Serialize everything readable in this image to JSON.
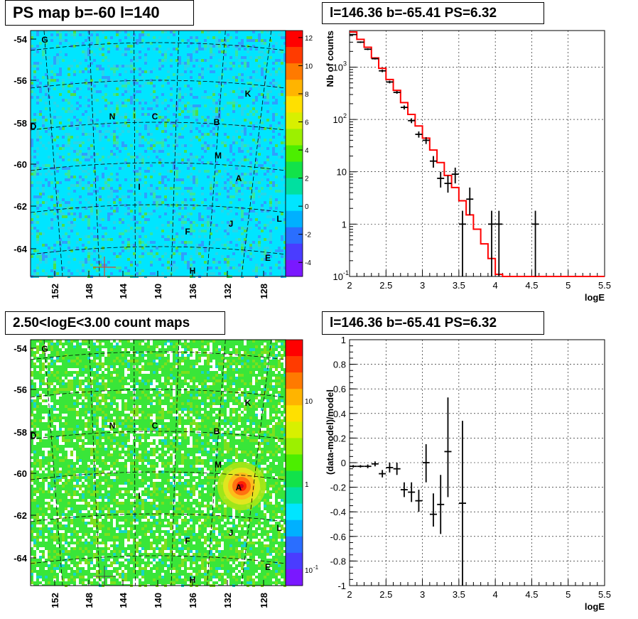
{
  "panels": {
    "map_top_title": "PS map b=-60 l=140",
    "spec_top_title": "l=146.36 b=-65.41 PS=6.32",
    "map_bottom_title": "2.50<logE<3.00 count maps",
    "spec_bottom_title": "l=146.36 b=-65.41 PS=6.32"
  },
  "colors": {
    "ps_cyan": "#00e5ff",
    "count_green": "#39e639",
    "model_line": "#ff0000",
    "data_marks": "#000000",
    "source_peak": "#ff0000"
  },
  "map_axes": {
    "lat_ticks": [
      "-54",
      "-56",
      "-58",
      "-60",
      "-62",
      "-64"
    ],
    "lon_ticks": [
      "152",
      "148",
      "144",
      "140",
      "136",
      "132",
      "128"
    ]
  },
  "source_labels": [
    "G",
    "K",
    "N",
    "C",
    "B",
    "D",
    "M",
    "A",
    "I",
    "L",
    "F",
    "J",
    "E",
    "H"
  ],
  "colorbars": {
    "ps_ticks": [
      "12",
      "10",
      "8",
      "6",
      "4",
      "2",
      "0",
      "-2",
      "-4"
    ],
    "count_ticks": [
      "10",
      "1",
      "10",
      "-1"
    ]
  },
  "chart_data": [
    {
      "type": "heatmap",
      "title": "PS map b=-60 l=140",
      "ylim": [
        -65.3,
        -53.8
      ],
      "xlim": [
        154.5,
        125.5
      ],
      "colorbar_range": [
        -5,
        12
      ]
    },
    {
      "type": "line",
      "title": "l=146.36 b=-65.41 PS=6.32",
      "xlabel": "logE",
      "ylabel": "Nb of counts",
      "xlim": [
        2,
        5.5
      ],
      "ylim": [
        0.1,
        5000
      ],
      "yscale": "log",
      "grid": true,
      "x_ticks": [
        "2",
        "2.5",
        "3",
        "3.5",
        "4",
        "4.5",
        "5",
        "5.5"
      ],
      "y_ticks": [
        "10-1",
        "1",
        "10",
        "102",
        "103"
      ],
      "model_steps": [
        {
          "x0": 2.0,
          "x1": 2.1,
          "y": 4700
        },
        {
          "x0": 2.1,
          "x1": 2.2,
          "y": 3400
        },
        {
          "x0": 2.2,
          "x1": 2.3,
          "y": 2400
        },
        {
          "x0": 2.3,
          "x1": 2.4,
          "y": 1500
        },
        {
          "x0": 2.4,
          "x1": 2.5,
          "y": 950
        },
        {
          "x0": 2.5,
          "x1": 2.6,
          "y": 580
        },
        {
          "x0": 2.6,
          "x1": 2.7,
          "y": 360
        },
        {
          "x0": 2.7,
          "x1": 2.8,
          "y": 210
        },
        {
          "x0": 2.8,
          "x1": 2.9,
          "y": 125
        },
        {
          "x0": 2.9,
          "x1": 3.0,
          "y": 75
        },
        {
          "x0": 3.0,
          "x1": 3.1,
          "y": 44
        },
        {
          "x0": 3.1,
          "x1": 3.2,
          "y": 26
        },
        {
          "x0": 3.2,
          "x1": 3.3,
          "y": 15
        },
        {
          "x0": 3.3,
          "x1": 3.4,
          "y": 8.5
        },
        {
          "x0": 3.4,
          "x1": 3.5,
          "y": 5
        },
        {
          "x0": 3.5,
          "x1": 3.6,
          "y": 2.8
        },
        {
          "x0": 3.6,
          "x1": 3.7,
          "y": 1.5
        },
        {
          "x0": 3.7,
          "x1": 3.8,
          "y": 0.8
        },
        {
          "x0": 3.8,
          "x1": 3.9,
          "y": 0.42
        },
        {
          "x0": 3.9,
          "x1": 4.0,
          "y": 0.22
        },
        {
          "x0": 4.0,
          "x1": 4.1,
          "y": 0.11
        },
        {
          "x0": 4.1,
          "x1": 5.5,
          "y": 0.1
        }
      ],
      "data_points": [
        {
          "x": 2.05,
          "y": 4200,
          "lo": 4100,
          "hi": 4300
        },
        {
          "x": 2.15,
          "y": 3000,
          "lo": 2900,
          "hi": 3100
        },
        {
          "x": 2.25,
          "y": 2200,
          "lo": 2120,
          "hi": 2280
        },
        {
          "x": 2.35,
          "y": 1450,
          "lo": 1400,
          "hi": 1500
        },
        {
          "x": 2.45,
          "y": 850,
          "lo": 800,
          "hi": 900
        },
        {
          "x": 2.55,
          "y": 520,
          "lo": 490,
          "hi": 550
        },
        {
          "x": 2.65,
          "y": 330,
          "lo": 310,
          "hi": 350
        },
        {
          "x": 2.75,
          "y": 170,
          "lo": 155,
          "hi": 185
        },
        {
          "x": 2.85,
          "y": 95,
          "lo": 85,
          "hi": 105
        },
        {
          "x": 2.95,
          "y": 52,
          "lo": 45,
          "hi": 59
        },
        {
          "x": 3.05,
          "y": 40,
          "lo": 34,
          "hi": 46
        },
        {
          "x": 3.15,
          "y": 16,
          "lo": 12,
          "hi": 20
        },
        {
          "x": 3.25,
          "y": 7.5,
          "lo": 5,
          "hi": 10
        },
        {
          "x": 3.35,
          "y": 6,
          "lo": 4,
          "hi": 8.5
        },
        {
          "x": 3.45,
          "y": 9,
          "lo": 6,
          "hi": 12
        },
        {
          "x": 3.55,
          "y": 1,
          "lo": 0.1,
          "hi": 1.8
        },
        {
          "x": 3.65,
          "y": 3,
          "lo": 1.5,
          "hi": 5
        },
        {
          "x": 3.95,
          "y": 1,
          "lo": 0.1,
          "hi": 1.8
        },
        {
          "x": 4.05,
          "y": 1,
          "lo": 0.1,
          "hi": 1.8
        },
        {
          "x": 4.55,
          "y": 1,
          "lo": 0.1,
          "hi": 1.8
        }
      ]
    },
    {
      "type": "heatmap",
      "title": "2.50<logE<3.00 count maps",
      "ylim": [
        -65.3,
        -53.8
      ],
      "xlim": [
        154.5,
        125.5
      ],
      "colorbar_scale": "log"
    },
    {
      "type": "scatter",
      "title": "l=146.36 b=-65.41 PS=6.32",
      "xlabel": "logE",
      "ylabel": "(data-model)/model",
      "xlim": [
        2,
        5.5
      ],
      "ylim": [
        -1,
        1
      ],
      "grid": true,
      "x_ticks": [
        "2",
        "2.5",
        "3",
        "3.5",
        "4",
        "4.5",
        "5",
        "5.5"
      ],
      "y_ticks": [
        "-1",
        "-0.8",
        "-0.6",
        "-0.4",
        "-0.2",
        "0",
        "0.2",
        "0.4",
        "0.6",
        "0.8",
        "1"
      ],
      "data_points": [
        {
          "x": 2.05,
          "y": -0.03,
          "lo": -0.04,
          "hi": -0.02
        },
        {
          "x": 2.15,
          "y": -0.03,
          "lo": -0.04,
          "hi": -0.02
        },
        {
          "x": 2.25,
          "y": -0.03,
          "lo": -0.045,
          "hi": -0.015
        },
        {
          "x": 2.35,
          "y": -0.01,
          "lo": -0.03,
          "hi": 0.01
        },
        {
          "x": 2.45,
          "y": -0.09,
          "lo": -0.12,
          "hi": -0.06
        },
        {
          "x": 2.55,
          "y": -0.04,
          "lo": -0.08,
          "hi": 0.0
        },
        {
          "x": 2.65,
          "y": -0.05,
          "lo": -0.1,
          "hi": 0.0
        },
        {
          "x": 2.75,
          "y": -0.22,
          "lo": -0.28,
          "hi": -0.16
        },
        {
          "x": 2.85,
          "y": -0.24,
          "lo": -0.32,
          "hi": -0.16
        },
        {
          "x": 2.95,
          "y": -0.31,
          "lo": -0.4,
          "hi": -0.22
        },
        {
          "x": 3.05,
          "y": 0.0,
          "lo": -0.16,
          "hi": 0.15
        },
        {
          "x": 3.15,
          "y": -0.42,
          "lo": -0.52,
          "hi": -0.25
        },
        {
          "x": 3.25,
          "y": -0.34,
          "lo": -0.58,
          "hi": -0.1
        },
        {
          "x": 3.35,
          "y": 0.09,
          "lo": -0.28,
          "hi": 0.53
        },
        {
          "x": 3.55,
          "y": -0.33,
          "lo": -1.0,
          "hi": 0.34
        }
      ]
    }
  ]
}
